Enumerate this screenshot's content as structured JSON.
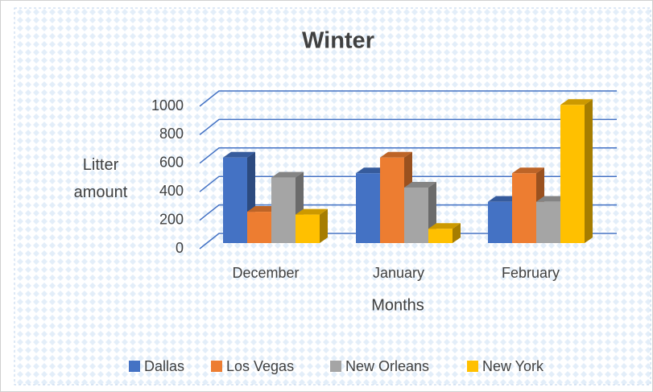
{
  "chart_data": {
    "type": "bar3d",
    "title": "Winter",
    "y_label": "Litter amount",
    "x_label": "Months",
    "categories": [
      "December",
      "January",
      "February"
    ],
    "series": [
      {
        "name": "Dallas",
        "color": "#4472c4",
        "values": [
          600,
          490,
          290
        ]
      },
      {
        "name": "Los Vegas",
        "color": "#ed7d31",
        "values": [
          220,
          600,
          490
        ]
      },
      {
        "name": "New Orleans",
        "color": "#a5a5a5",
        "values": [
          460,
          390,
          290
        ]
      },
      {
        "name": "New York",
        "color": "#ffc000",
        "values": [
          200,
          100,
          970
        ]
      }
    ],
    "ylim": [
      0,
      1000
    ],
    "yticks": [
      0,
      200,
      400,
      600,
      800,
      1000
    ],
    "grid": true,
    "legend": "bottom"
  }
}
